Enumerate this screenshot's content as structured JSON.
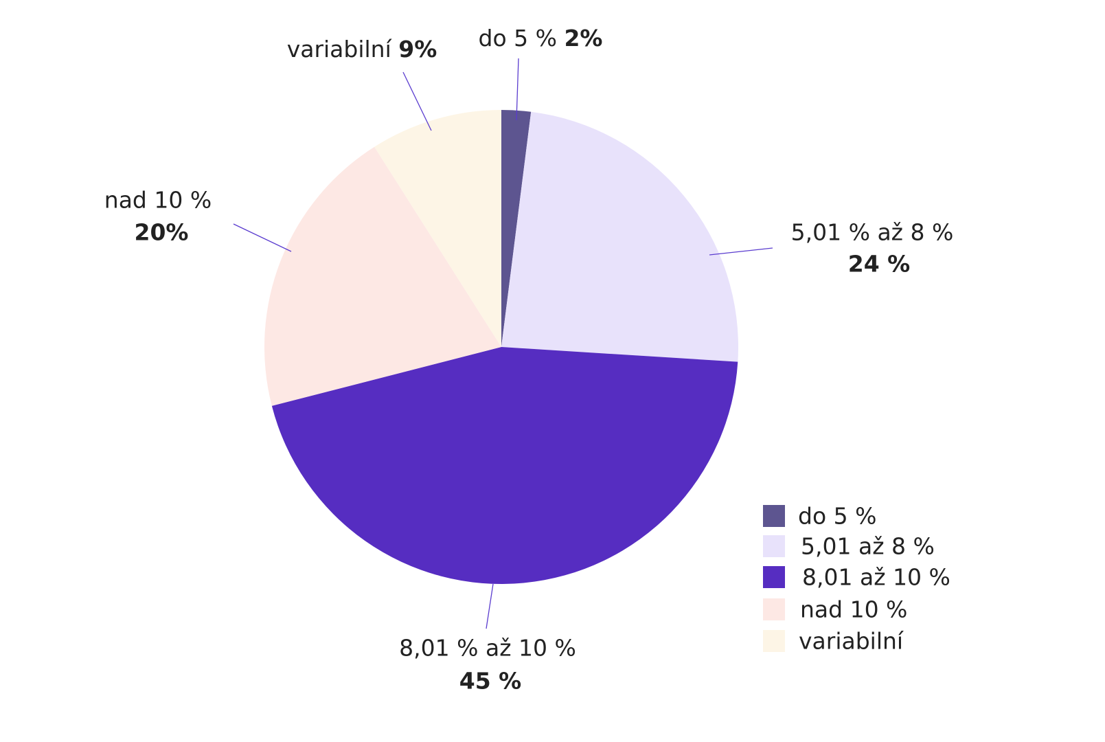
{
  "chart_data": {
    "type": "pie",
    "categories": [
      "do 5 %",
      "5,01 až 8 %",
      "8,01 až 10 %",
      "nad 10 %",
      "variabilní"
    ],
    "slice_labels": [
      "do 5 %",
      "5,01 % až 8 %",
      "8,01 % až 10 %",
      "nad 10 %",
      "variabilní"
    ],
    "values": [
      2,
      24,
      45,
      20,
      9
    ],
    "value_labels": [
      "2%",
      "24 %",
      "45 %",
      "20%",
      "9%"
    ],
    "colors": [
      "#5d5590",
      "#e8e2fb",
      "#562dc1",
      "#fde8e4",
      "#fdf5e6"
    ],
    "legend": "bottom-right"
  }
}
